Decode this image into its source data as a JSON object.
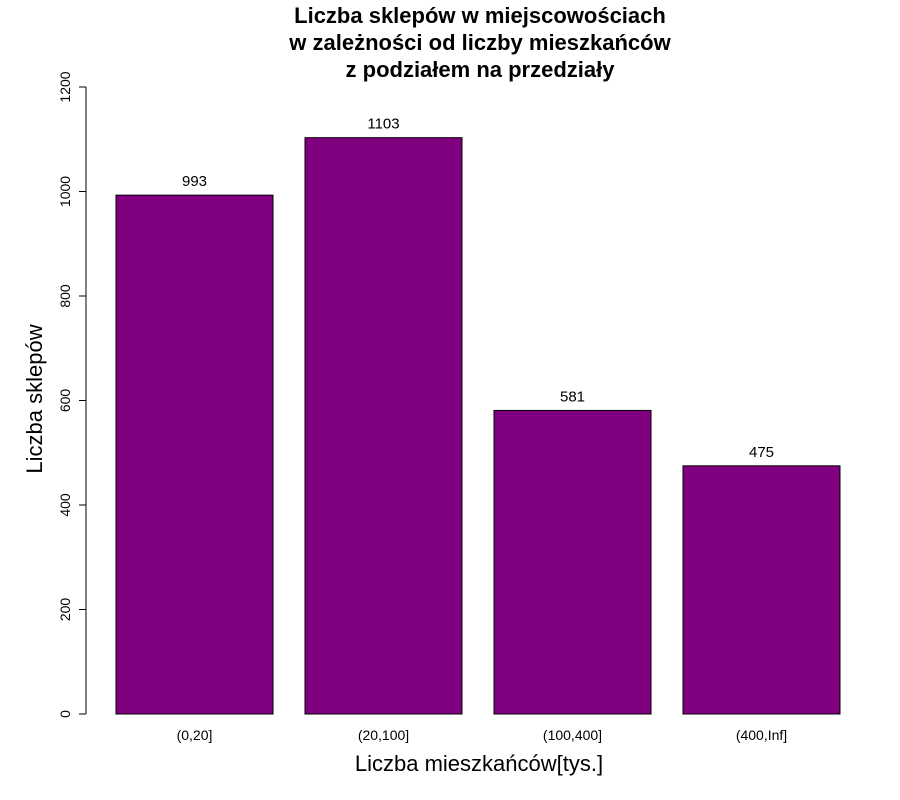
{
  "chart_data": {
    "type": "bar",
    "title": [
      "Liczba sklepów w miejscowościach",
      "w zależności od liczby mieszkańców",
      "z podziałem na przedziały"
    ],
    "xlabel": "Liczba mieszkańców[tys.]",
    "ylabel": "Liczba sklepów",
    "categories": [
      "(0,20]",
      "(20,100]",
      "(100,400]",
      "(400,Inf]"
    ],
    "values": [
      993,
      1103,
      581,
      475
    ],
    "data_labels": [
      "993",
      "1103",
      "581",
      "475"
    ],
    "ylim": [
      0,
      1200
    ],
    "yticks": [
      0,
      200,
      400,
      600,
      800,
      1000,
      1200
    ],
    "ytick_labels": [
      "0",
      "200",
      "400",
      "600",
      "800",
      "1000",
      "1200"
    ],
    "bar_color": "#800080",
    "bar_border_color": "#000000",
    "grid": false,
    "legend": "none"
  }
}
